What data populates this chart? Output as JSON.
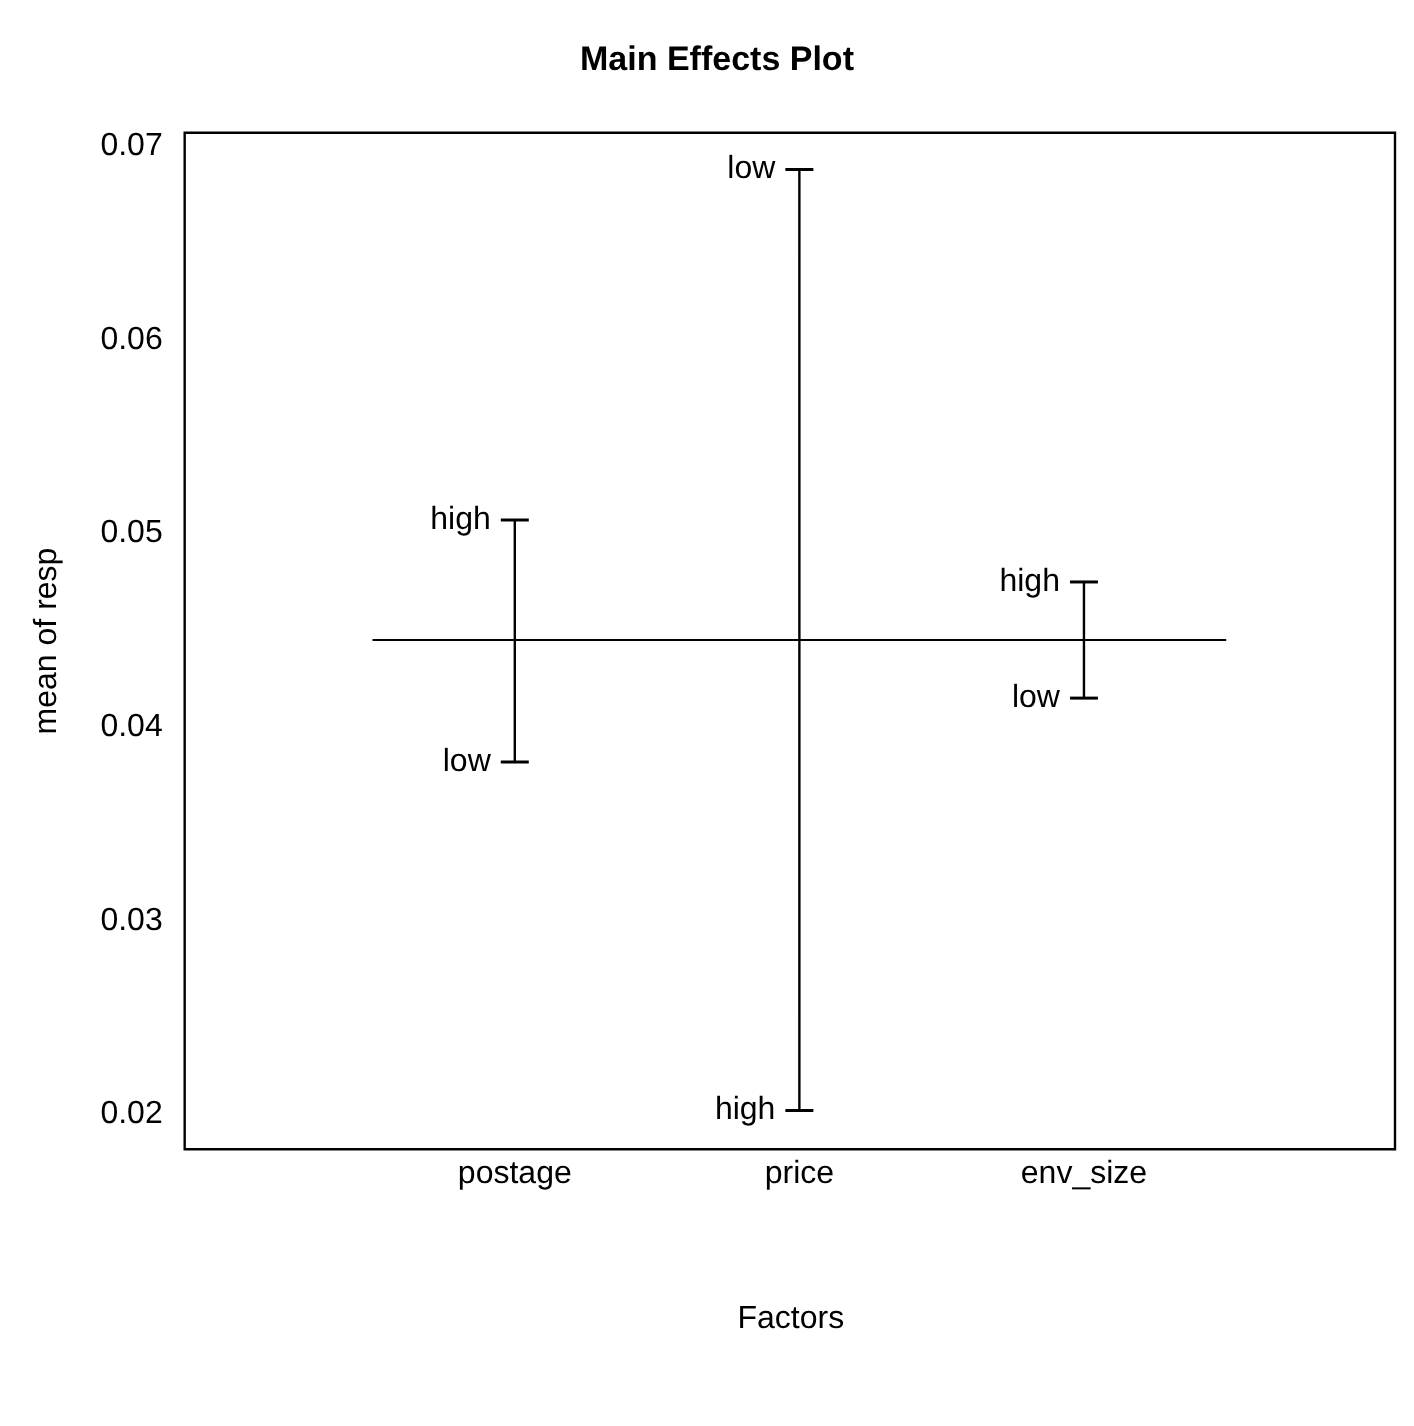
{
  "chart_data": {
    "type": "line",
    "title": "Main Effects Plot",
    "xlabel": "Factors",
    "ylabel": "mean of resp",
    "categories": [
      "postage",
      "price",
      "env_size"
    ],
    "series": [
      {
        "x": [
          "postage",
          "postage"
        ],
        "values": [
          0.0507,
          0.0382
        ],
        "value_labels": [
          "high",
          "low"
        ],
        "color": "#000000"
      },
      {
        "x": [
          "price",
          "price"
        ],
        "values": [
          0.0688,
          0.0202
        ],
        "value_labels": [
          "low",
          "high"
        ],
        "color": "#000000"
      },
      {
        "x": [
          "env_size",
          "env_size"
        ],
        "values": [
          0.0475,
          0.0415
        ],
        "value_labels": [
          "high",
          "low"
        ],
        "color": "#000000"
      }
    ],
    "ref_lines": [
      {
        "axis": "y",
        "value": 0.0445,
        "color": "#000000"
      }
    ],
    "ylim": [
      0.0182,
      0.0707
    ],
    "yticks": [
      0.02,
      0.03,
      0.04,
      0.05,
      0.06,
      0.07
    ],
    "grid": false,
    "legend": false
  }
}
